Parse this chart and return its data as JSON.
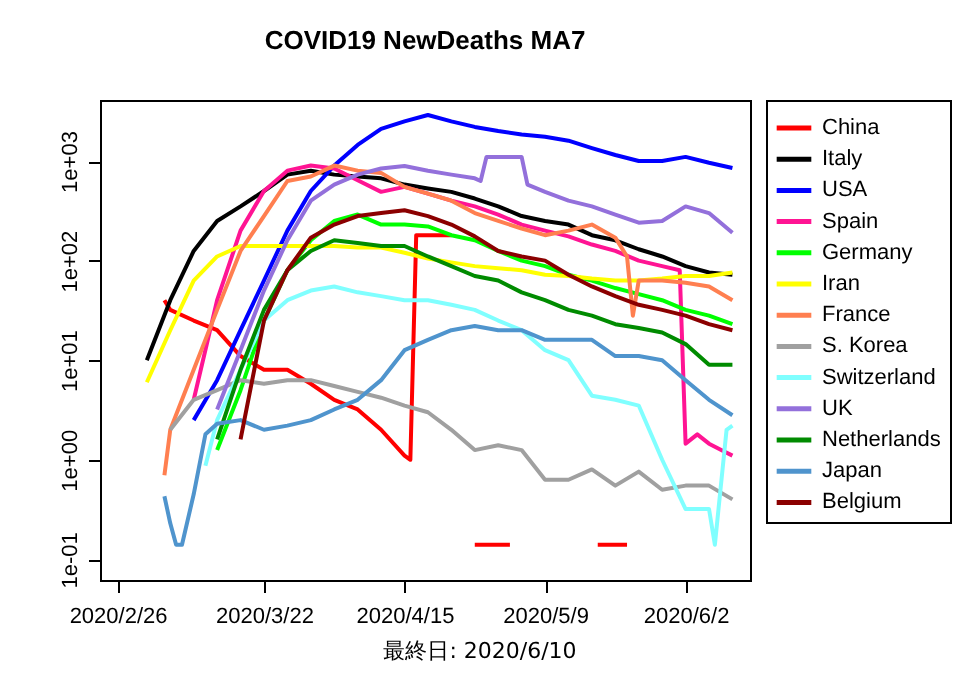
{
  "chart_data": {
    "type": "line",
    "title": "COVID19 NewDeaths MA7",
    "annotations": [
      "最終日: 2020/6/10"
    ],
    "log": "y",
    "grid": false,
    "legend": "right",
    "xlim": [
      "2020-02-23",
      "2020-06-13"
    ],
    "xticks": [
      {
        "value": "2020-02-26",
        "label": "2020/2/26"
      },
      {
        "value": "2020-03-22",
        "label": "2020/3/22"
      },
      {
        "value": "2020-04-15",
        "label": "2020/4/15"
      },
      {
        "value": "2020-05-09",
        "label": "2020/5/9"
      },
      {
        "value": "2020-06-02",
        "label": "2020/6/2"
      }
    ],
    "ylim": [
      0.062,
      4100
    ],
    "yticks": [
      {
        "value": 0.1,
        "label": "1e-01"
      },
      {
        "value": 1,
        "label": "1e+00"
      },
      {
        "value": 10,
        "label": "1e+01"
      },
      {
        "value": 100,
        "label": "1e+02"
      },
      {
        "value": 1000,
        "label": "1e+03"
      }
    ],
    "x": [
      "2020-03-02",
      "2020-03-06",
      "2020-03-10",
      "2020-03-14",
      "2020-03-18",
      "2020-03-22",
      "2020-03-26",
      "2020-03-30",
      "2020-04-03",
      "2020-04-07",
      "2020-04-11",
      "2020-04-15",
      "2020-04-19",
      "2020-04-23",
      "2020-04-27",
      "2020-05-01",
      "2020-05-05",
      "2020-05-09",
      "2020-05-13",
      "2020-05-17",
      "2020-05-21",
      "2020-05-25",
      "2020-05-29",
      "2020-06-02",
      "2020-06-06",
      "2020-06-10"
    ],
    "series": [
      {
        "name": "China",
        "color": "#ff0000",
        "x": [
          "2020-03-05",
          "2020-03-06",
          "2020-03-10",
          "2020-03-14",
          "2020-03-18",
          "2020-03-22",
          "2020-03-26",
          "2020-03-30",
          "2020-04-03",
          "2020-04-07",
          "2020-04-11",
          "2020-04-15",
          "2020-04-16",
          "2020-04-17",
          "2020-04-23",
          "2020-04-24",
          "2020-04-27",
          "2020-05-03",
          "2020-05-04",
          "2020-05-18",
          "2020-05-23"
        ],
        "values": [
          40,
          32,
          25,
          20,
          11,
          8,
          8,
          5.8,
          4,
          3.2,
          2,
          1.1,
          1,
          180,
          180,
          null,
          0.14,
          0.14,
          null,
          0.14,
          0.14
        ]
      },
      {
        "name": "Italy",
        "color": "#000000",
        "values": [
          10,
          40,
          125,
          250,
          350,
          500,
          730,
          800,
          730,
          700,
          670,
          580,
          530,
          490,
          420,
          350,
          280,
          250,
          230,
          180,
          160,
          130,
          110,
          88,
          76,
          72
        ]
      },
      {
        "name": "USA",
        "color": "#0000ff",
        "values": [
          null,
          null,
          2.5,
          6.3,
          20,
          63,
          200,
          500,
          900,
          1450,
          2100,
          2500,
          2900,
          2500,
          2200,
          2000,
          1850,
          1750,
          1600,
          1350,
          1150,
          1000,
          1000,
          1100,
          960,
          850
        ]
      },
      {
        "name": "Spain",
        "color": "#ff1493",
        "x": [
          "2020-03-10",
          "2020-03-14",
          "2020-03-18",
          "2020-03-22",
          "2020-03-26",
          "2020-03-30",
          "2020-04-03",
          "2020-04-07",
          "2020-04-11",
          "2020-04-15",
          "2020-04-19",
          "2020-04-23",
          "2020-04-27",
          "2020-05-01",
          "2020-05-05",
          "2020-05-09",
          "2020-05-13",
          "2020-05-17",
          "2020-05-21",
          "2020-05-25",
          "2020-05-29",
          "2020-06-01",
          "2020-06-02",
          "2020-06-04",
          "2020-06-06",
          "2020-06-08",
          "2020-06-10"
        ],
        "values": [
          4,
          40,
          200,
          500,
          800,
          900,
          840,
          640,
          490,
          550,
          470,
          400,
          350,
          290,
          230,
          200,
          175,
          145,
          125,
          100,
          88,
          80,
          1.45,
          1.8,
          1.45,
          1.26,
          1.1
        ]
      },
      {
        "name": "Germany",
        "color": "#00ff00",
        "values": [
          null,
          null,
          null,
          1.25,
          5,
          25,
          80,
          160,
          250,
          290,
          230,
          230,
          220,
          180,
          160,
          125,
          100,
          88,
          72,
          63,
          53,
          46,
          40,
          32,
          28,
          23
        ]
      },
      {
        "name": "Iran",
        "color": "#ffff00",
        "values": [
          6,
          20,
          63,
          110,
          140,
          140,
          140,
          140,
          140,
          135,
          135,
          120,
          105,
          96,
          88,
          84,
          80,
          72,
          70,
          66,
          63,
          63,
          66,
          70,
          70,
          76
        ]
      },
      {
        "name": "France",
        "color": "#ff7f50",
        "x": [
          "2020-03-05",
          "2020-03-06",
          "2020-03-10",
          "2020-03-14",
          "2020-03-18",
          "2020-03-22",
          "2020-03-26",
          "2020-03-30",
          "2020-04-03",
          "2020-04-07",
          "2020-04-11",
          "2020-04-15",
          "2020-04-19",
          "2020-04-23",
          "2020-04-27",
          "2020-05-01",
          "2020-05-05",
          "2020-05-09",
          "2020-05-13",
          "2020-05-17",
          "2020-05-21",
          "2020-05-23",
          "2020-05-24",
          "2020-05-25",
          "2020-05-29",
          "2020-06-02",
          "2020-06-06",
          "2020-06-10"
        ],
        "values": [
          0.7,
          2,
          8,
          32,
          125,
          280,
          630,
          700,
          900,
          800,
          760,
          550,
          470,
          400,
          300,
          250,
          210,
          180,
          200,
          230,
          170,
          110,
          28,
          63,
          63,
          60,
          55,
          40
        ]
      },
      {
        "name": "S. Korea",
        "color": "#a0a0a0",
        "values": [
          null,
          2,
          4,
          5,
          6.3,
          5.8,
          6.3,
          6.3,
          5.5,
          4.8,
          4.2,
          3.5,
          3,
          2,
          1.25,
          1.4,
          1.25,
          0.63,
          0.63,
          0.8,
          0.55,
          0.76,
          0.5,
          0.55,
          0.55,
          0.4
        ]
      },
      {
        "name": "Switzerland",
        "color": "#80ffff",
        "x": [
          "2020-03-12",
          "2020-03-14",
          "2020-03-18",
          "2020-03-22",
          "2020-03-26",
          "2020-03-30",
          "2020-04-03",
          "2020-04-07",
          "2020-04-11",
          "2020-04-15",
          "2020-04-19",
          "2020-04-23",
          "2020-04-27",
          "2020-05-01",
          "2020-05-05",
          "2020-05-09",
          "2020-05-13",
          "2020-05-17",
          "2020-05-21",
          "2020-05-25",
          "2020-05-29",
          "2020-06-02",
          "2020-06-06",
          "2020-06-07",
          "2020-06-09",
          "2020-06-10"
        ],
        "values": [
          0.87,
          2.5,
          8,
          25,
          40,
          50,
          55,
          48,
          44,
          40,
          40,
          36,
          32,
          25,
          20,
          12.6,
          10,
          4.4,
          4,
          3.5,
          1,
          0.32,
          0.32,
          0.14,
          2,
          2.2
        ]
      },
      {
        "name": "UK",
        "color": "#9370db",
        "x": [
          "2020-03-14",
          "2020-03-18",
          "2020-03-22",
          "2020-03-26",
          "2020-03-30",
          "2020-04-03",
          "2020-04-07",
          "2020-04-11",
          "2020-04-15",
          "2020-04-19",
          "2020-04-23",
          "2020-04-27",
          "2020-04-28",
          "2020-04-29",
          "2020-05-05",
          "2020-05-06",
          "2020-05-09",
          "2020-05-13",
          "2020-05-17",
          "2020-05-21",
          "2020-05-25",
          "2020-05-29",
          "2020-06-02",
          "2020-06-06",
          "2020-06-10"
        ],
        "values": [
          3.2,
          12.6,
          50,
          160,
          400,
          580,
          730,
          840,
          890,
          800,
          730,
          670,
          630,
          1100,
          1100,
          580,
          490,
          400,
          350,
          290,
          240,
          250,
          350,
          300,
          190
        ]
      },
      {
        "name": "Netherlands",
        "color": "#008b00",
        "values": [
          null,
          null,
          null,
          1.6,
          8,
          32,
          80,
          125,
          160,
          150,
          140,
          140,
          110,
          88,
          70,
          63,
          48,
          40,
          32,
          28,
          23,
          21,
          19,
          14.5,
          9,
          9
        ]
      },
      {
        "name": "Japan",
        "color": "#4f94cd",
        "x": [
          "2020-03-05",
          "2020-03-06",
          "2020-03-07",
          "2020-03-08",
          "2020-03-10",
          "2020-03-12",
          "2020-03-14",
          "2020-03-18",
          "2020-03-22",
          "2020-03-26",
          "2020-03-30",
          "2020-04-03",
          "2020-04-07",
          "2020-04-11",
          "2020-04-15",
          "2020-04-19",
          "2020-04-23",
          "2020-04-27",
          "2020-05-01",
          "2020-05-05",
          "2020-05-09",
          "2020-05-13",
          "2020-05-17",
          "2020-05-21",
          "2020-05-25",
          "2020-05-29",
          "2020-06-02",
          "2020-06-06",
          "2020-06-10"
        ],
        "values": [
          0.43,
          0.23,
          0.14,
          0.14,
          0.45,
          1.8,
          2.3,
          2.5,
          2,
          2.2,
          2.5,
          3.2,
          4,
          6.3,
          12.6,
          16,
          20,
          22,
          20,
          20,
          16,
          16,
          16,
          11,
          11,
          10,
          6.3,
          4,
          2.8
        ]
      },
      {
        "name": "Belgium",
        "color": "#8b0000",
        "values": [
          null,
          null,
          null,
          null,
          1.6,
          25,
          80,
          170,
          230,
          280,
          300,
          320,
          280,
          230,
          175,
          125,
          110,
          100,
          72,
          55,
          44,
          36,
          32,
          28,
          23,
          20
        ]
      }
    ]
  }
}
